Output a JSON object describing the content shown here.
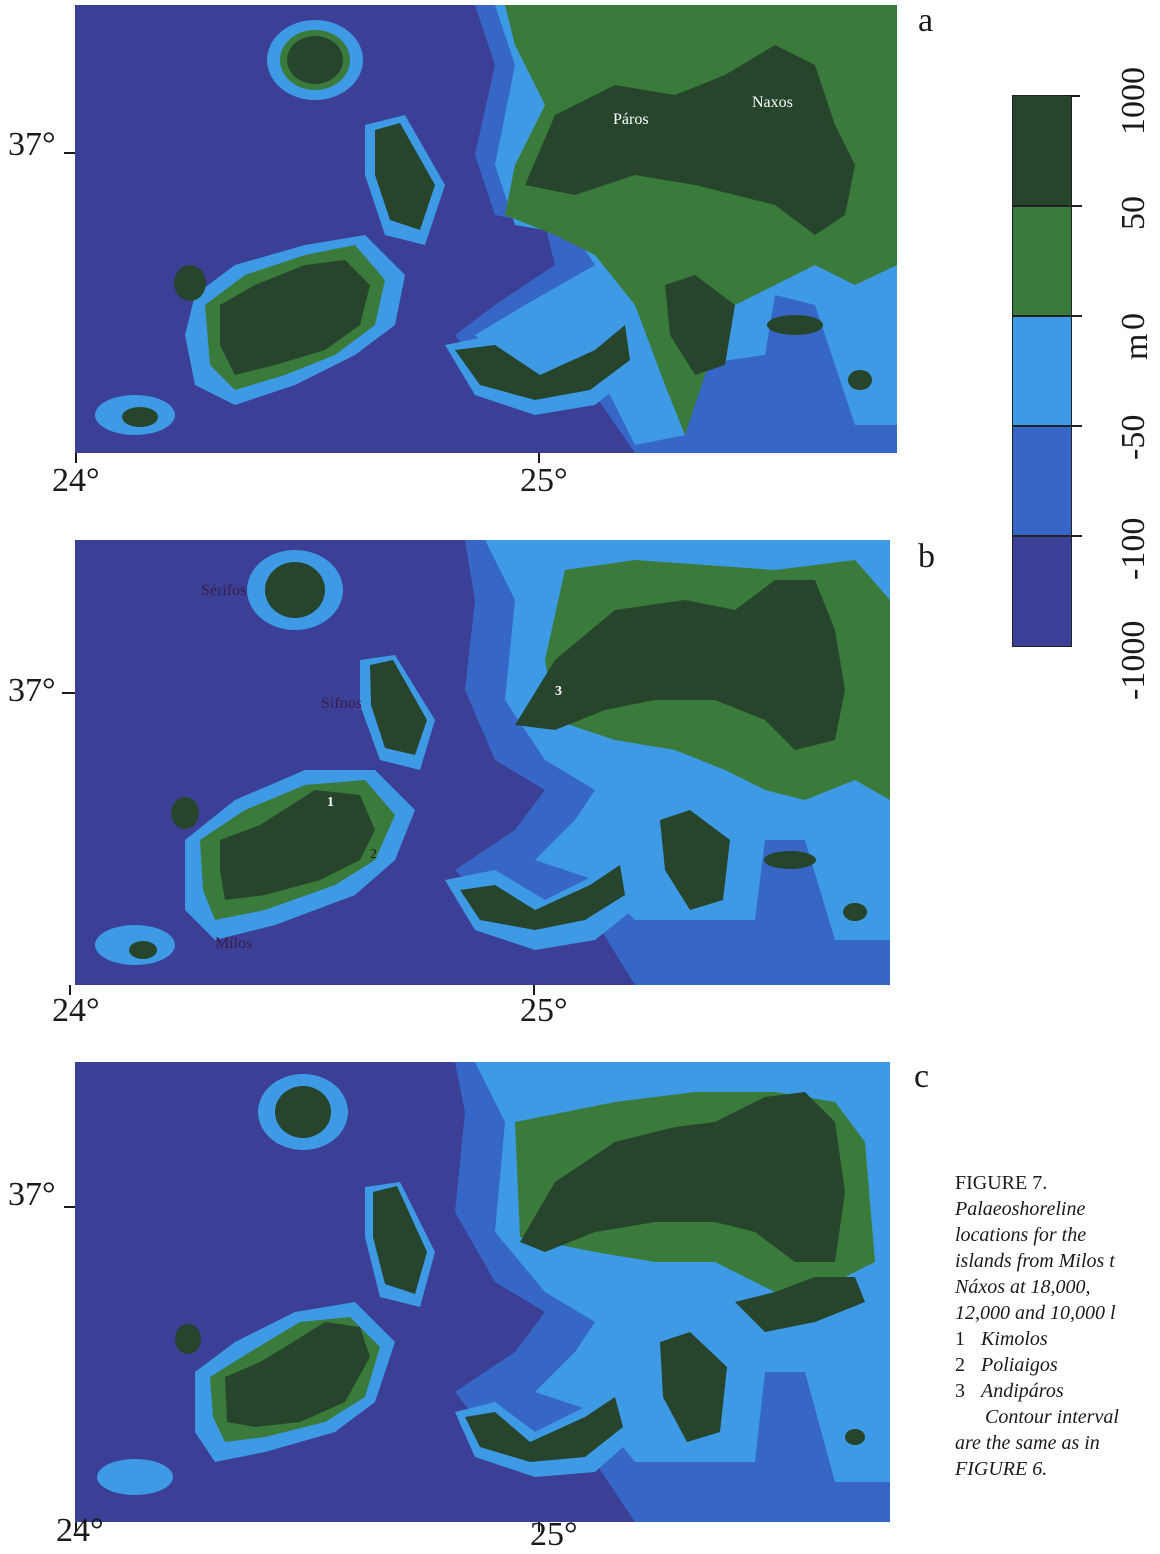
{
  "colors": {
    "deep": "#3b3f96",
    "mid": "#3767c6",
    "shallow": "#3e9ae5",
    "low_land": "#3a7a3a",
    "high_land": "#26452c"
  },
  "panels": [
    {
      "id": "a",
      "letter": "a",
      "lat_label": "37°",
      "lon_labels": [
        "24°",
        "25°"
      ],
      "places": [
        {
          "name": "Páros"
        },
        {
          "name": "Naxos"
        }
      ]
    },
    {
      "id": "b",
      "letter": "b",
      "lat_label": "37°",
      "lon_labels": [
        "24°",
        "25°"
      ],
      "places": [
        {
          "name": "Sérifos"
        },
        {
          "name": "Sífnos"
        },
        {
          "name": "Mílos"
        }
      ],
      "markers": [
        "1",
        "2",
        "3"
      ]
    },
    {
      "id": "c",
      "letter": "c",
      "lat_label": "37°",
      "lon_labels": [
        "24°",
        "25°"
      ]
    }
  ],
  "colorbar": {
    "unit": "m",
    "ticks": [
      "1000",
      "50",
      "0",
      "-50",
      "-100",
      "-1000"
    ]
  },
  "caption": {
    "title": "FIGURE 7.",
    "lines": [
      "Palaeoshoreline",
      "locations for the",
      "islands from Milos t",
      "Náxos at 18,000,",
      "12,000 and 10,000 l"
    ],
    "items": [
      {
        "num": "1",
        "label": "Kimolos"
      },
      {
        "num": "2",
        "label": "Poliaigos"
      },
      {
        "num": "3",
        "label": "Andipáros"
      }
    ],
    "tail": [
      "Contour interval",
      "are the same as in",
      "FIGURE 6."
    ]
  }
}
